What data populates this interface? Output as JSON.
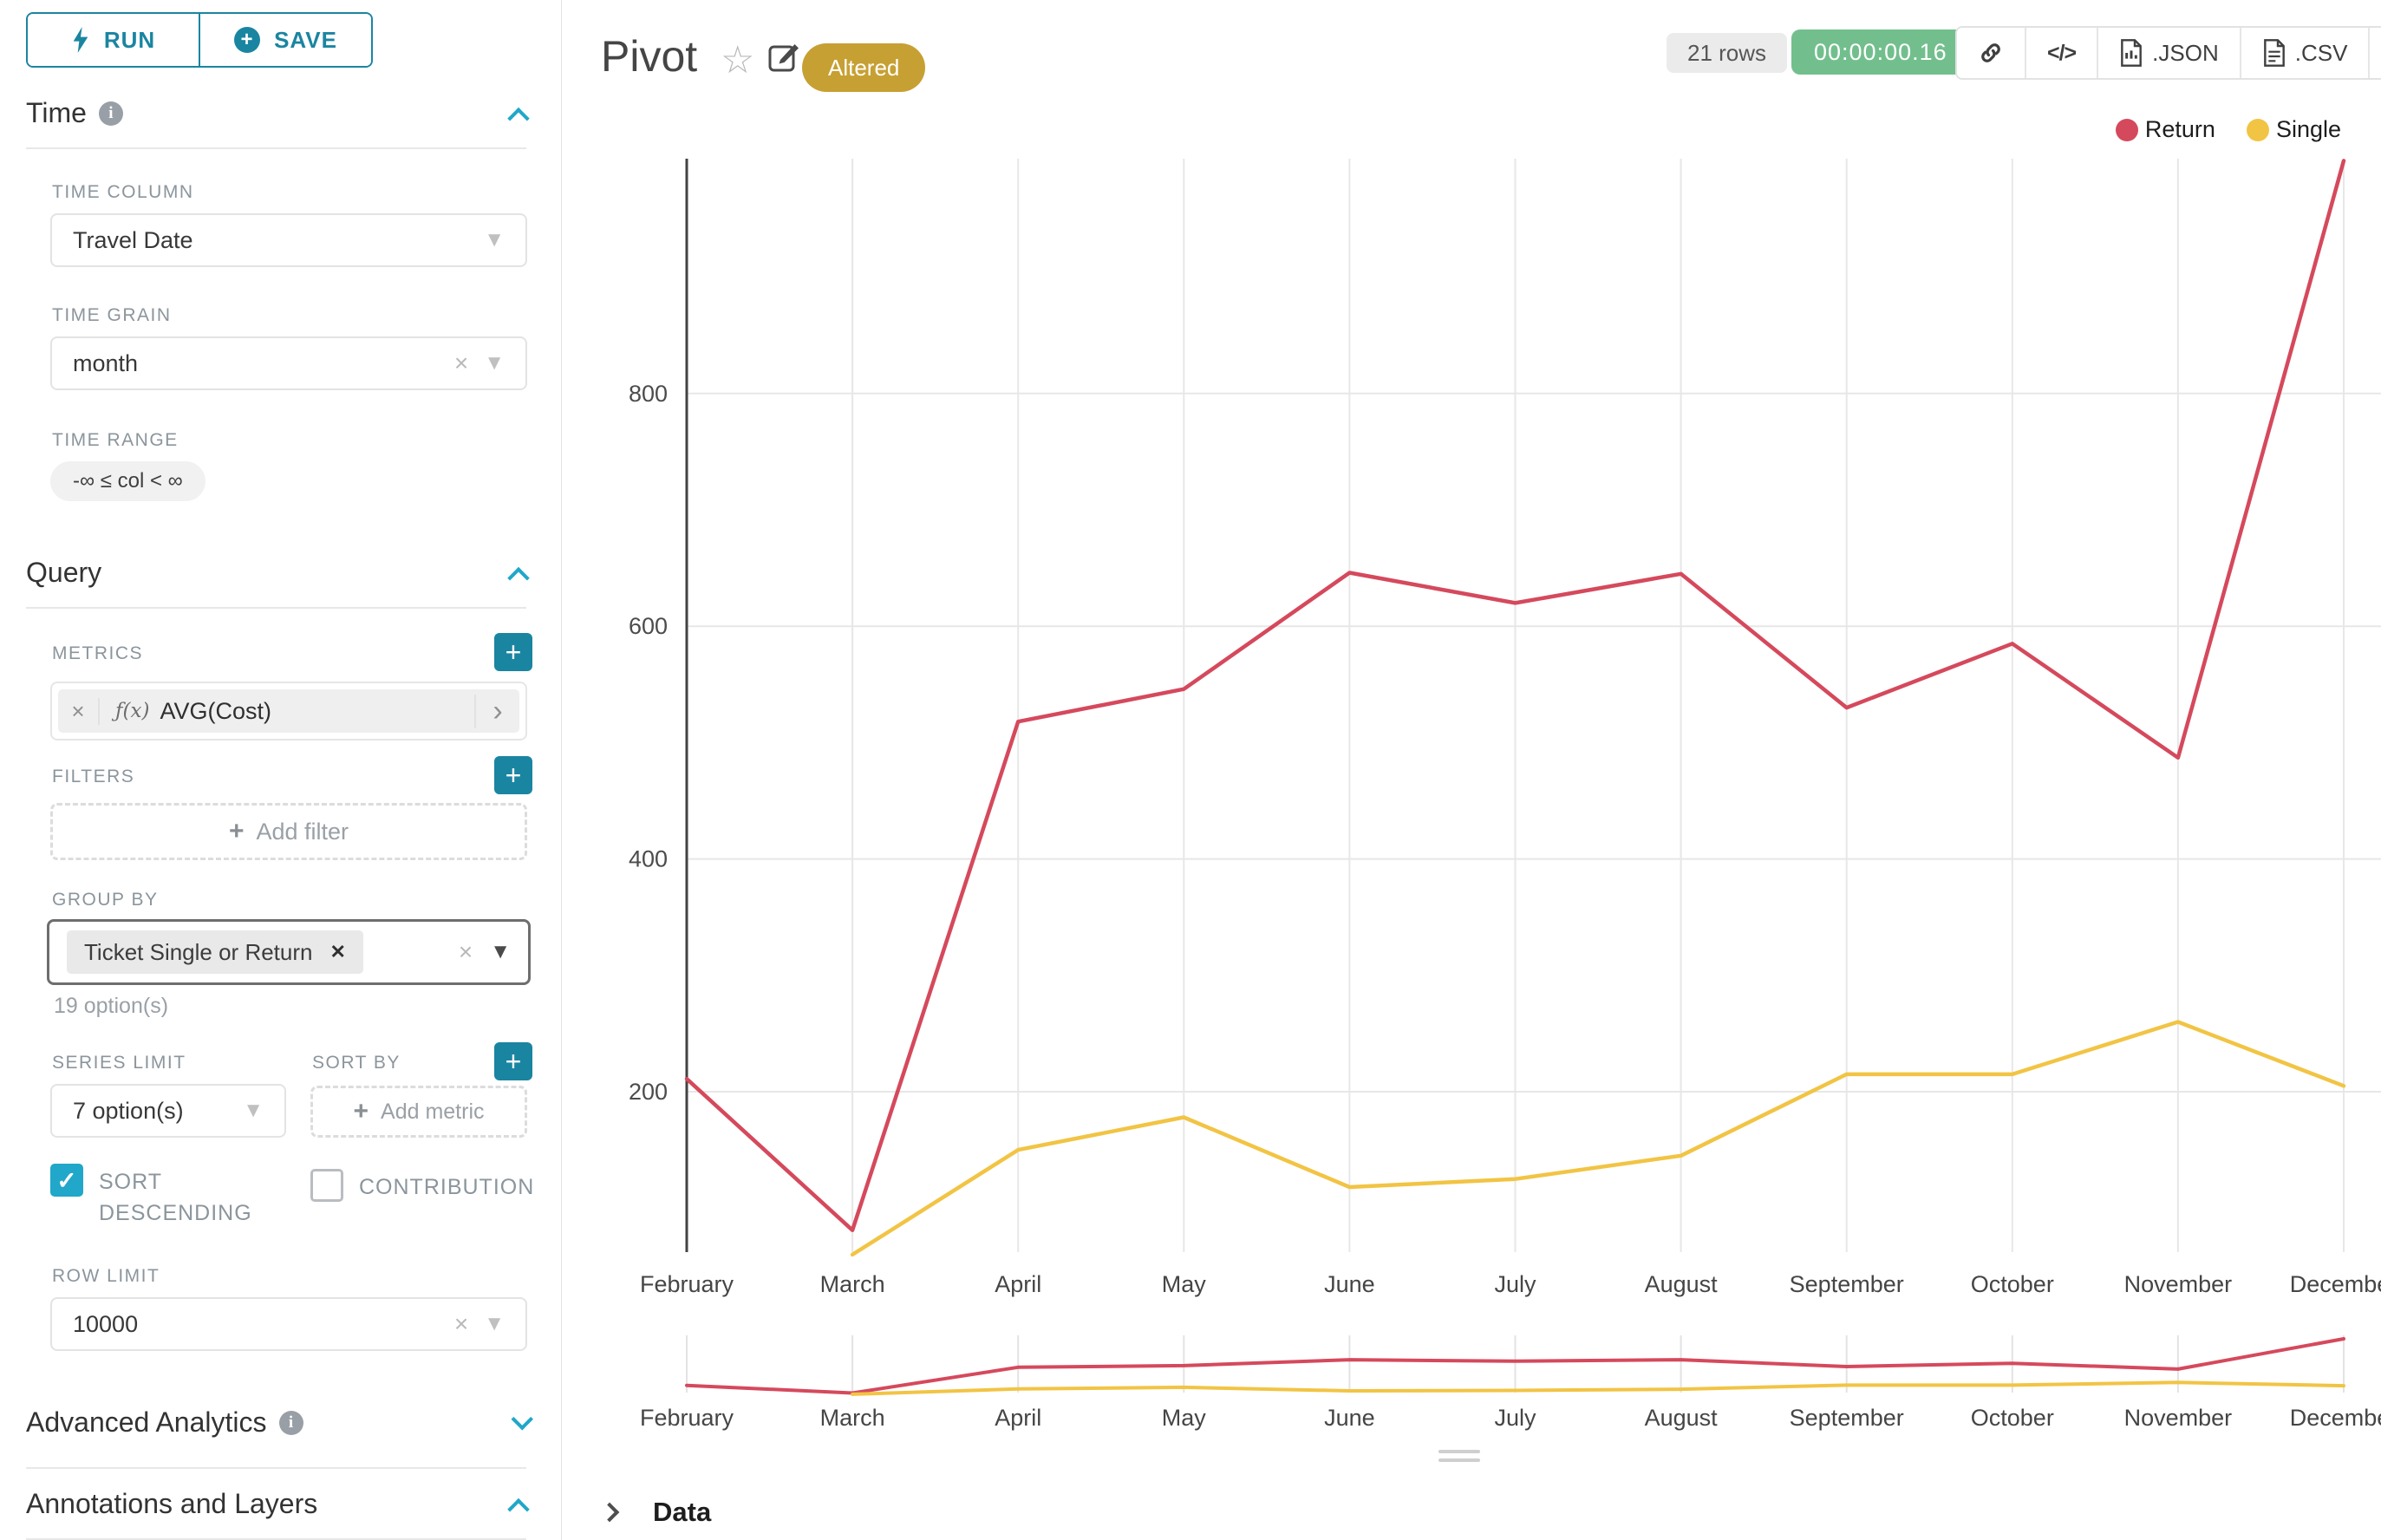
{
  "toolbar": {
    "run_label": "RUN",
    "save_label": "SAVE"
  },
  "sidebar": {
    "time": {
      "title": "Time",
      "time_column_label": "TIME COLUMN",
      "time_column_value": "Travel Date",
      "time_grain_label": "TIME GRAIN",
      "time_grain_value": "month",
      "time_range_label": "TIME RANGE",
      "time_range_value": "-∞ ≤ col < ∞"
    },
    "query": {
      "title": "Query",
      "metrics_label": "METRICS",
      "metric_fx": "ƒ(x)",
      "metric_value": "AVG(Cost)",
      "filters_label": "FILTERS",
      "add_filter_label": "Add filter",
      "group_by_label": "GROUP BY",
      "group_by_value": "Ticket Single or Return",
      "group_by_hint": "19 option(s)",
      "series_limit_label": "SERIES LIMIT",
      "series_limit_value": "7 option(s)",
      "sort_by_label": "SORT BY",
      "add_metric_label": "Add metric",
      "sort_descending_label": "SORT DESCENDING",
      "contribution_label": "CONTRIBUTION",
      "row_limit_label": "ROW LIMIT",
      "row_limit_value": "10000"
    },
    "advanced_title": "Advanced Analytics",
    "annotations_title": "Annotations and Layers"
  },
  "header": {
    "title": "Pivot",
    "altered_badge": "Altered",
    "rows_badge": "21 rows",
    "timer": "00:00:00.16",
    "json_label": ".JSON",
    "csv_label": ".CSV"
  },
  "footer": {
    "data_label": "Data"
  },
  "colors": {
    "primary": "#1a85a1",
    "checkbox": "#20a7c9",
    "altered": "#c7a033",
    "timer_green": "#72bf8d",
    "return_red": "#d5495c",
    "single_yellow": "#f2c444"
  },
  "chart_data": {
    "type": "line",
    "title": "Pivot",
    "categories": [
      "February",
      "March",
      "April",
      "May",
      "June",
      "July",
      "August",
      "September",
      "October",
      "November",
      "December"
    ],
    "series": [
      {
        "name": "Return",
        "color": "#d5495c",
        "values": [
          211,
          81,
          518,
          546,
          646,
          620,
          645,
          530,
          585,
          487,
          1000
        ]
      },
      {
        "name": "Single",
        "color": "#f2c444",
        "values": [
          null,
          60,
          150,
          178,
          118,
          125,
          145,
          215,
          215,
          260,
          205
        ]
      }
    ],
    "xlabel": "",
    "ylabel": "",
    "y_ticks": [
      200,
      400,
      600,
      800
    ],
    "ylim": [
      50,
      1010
    ],
    "grid": true,
    "legend_position": "top-right",
    "has_minimap": true
  }
}
